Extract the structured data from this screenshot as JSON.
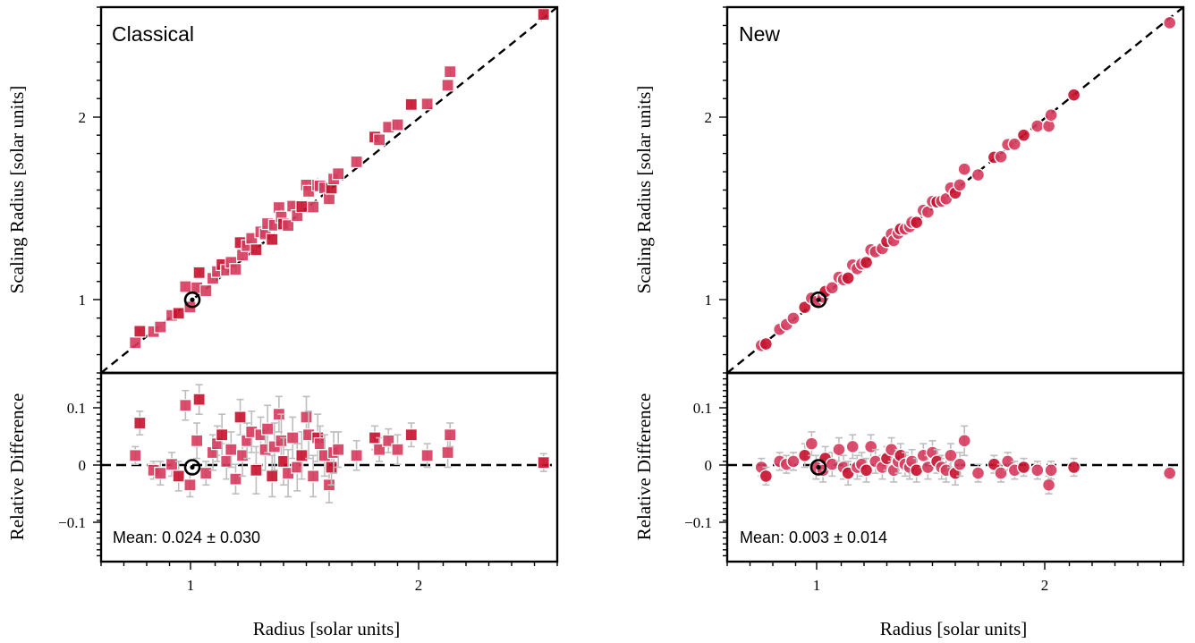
{
  "colors": {
    "marker": "#d63a5c",
    "marker_dark": "#c8102e",
    "errorbar": "#bdbdbd",
    "frame": "#000000",
    "sun_ring": "#000000"
  },
  "panels": [
    {
      "id": "classical",
      "title": "Classical",
      "marker": "square",
      "mean_text": "Mean: 0.024 ± 0.030",
      "xlabel": "Radius [solar units]",
      "ylabel_top": "Scaling Radius [solar units]",
      "ylabel_bottom": "Relative Difference",
      "xticklabels": [
        "1",
        "2"
      ],
      "yticklabels_top": [
        "1",
        "2"
      ],
      "yticklabels_bottom": [
        "0.1",
        "0",
        "−0.1"
      ]
    },
    {
      "id": "new",
      "title": "New",
      "marker": "circle",
      "mean_text": "Mean: 0.003 ± 0.014",
      "xlabel": "Radius [solar units]",
      "ylabel_top": "Scaling Radius [solar units]",
      "ylabel_bottom": "Relative Difference",
      "xticklabels": [
        "1",
        "2"
      ],
      "yticklabels_top": [
        "1",
        "2"
      ],
      "yticklabels_bottom": [
        "0.1",
        "0",
        "−0.1"
      ]
    }
  ],
  "chart_data": [
    {
      "type": "scatter",
      "title": "Classical",
      "xlabel": "Radius [solar units]",
      "ylabel_top": "Scaling Radius [solar units]",
      "ylabel_bottom": "Relative Difference",
      "xlim": [
        0.6,
        2.6
      ],
      "ylim_top": [
        0.6,
        2.6
      ],
      "ylim_bottom": [
        -0.16,
        0.16
      ],
      "xticks": [
        1,
        2
      ],
      "yticks_top": [
        1,
        2
      ],
      "yticks_bottom": [
        0.1,
        0,
        -0.1
      ],
      "reference_line_top": "y = x",
      "reference_line_bottom": "y = 0",
      "reference_point": {
        "x": 1.0,
        "y": 1.0,
        "rel": 0.0
      },
      "mean": 0.024,
      "std": 0.03,
      "x": [
        0.75,
        0.77,
        0.83,
        0.86,
        0.91,
        0.94,
        0.97,
        0.99,
        1.02,
        1.03,
        1.06,
        1.09,
        1.11,
        1.13,
        1.15,
        1.17,
        1.19,
        1.21,
        1.22,
        1.24,
        1.26,
        1.28,
        1.3,
        1.32,
        1.33,
        1.35,
        1.36,
        1.38,
        1.39,
        1.4,
        1.42,
        1.44,
        1.46,
        1.48,
        1.5,
        1.51,
        1.53,
        1.55,
        1.56,
        1.58,
        1.6,
        1.61,
        1.62,
        1.64,
        1.72,
        1.8,
        1.82,
        1.86,
        1.9,
        1.96,
        2.03,
        2.12,
        2.13,
        2.54
      ],
      "rel": [
        0.02,
        0.075,
        -0.005,
        -0.01,
        0.005,
        -0.015,
        0.105,
        -0.03,
        0.045,
        0.115,
        -0.01,
        0.025,
        0.04,
        0.055,
        0.01,
        0.03,
        -0.02,
        0.085,
        0.02,
        0.045,
        0.06,
        -0.005,
        0.055,
        0.03,
        0.065,
        -0.015,
        0.035,
        0.09,
        0.045,
        0.01,
        -0.01,
        0.05,
        0.0,
        0.02,
        0.085,
        0.055,
        -0.015,
        0.05,
        0.04,
        0.02,
        -0.03,
        0.0,
        0.025,
        0.03,
        0.02,
        0.05,
        0.03,
        0.045,
        0.03,
        0.055,
        0.02,
        0.025,
        0.055,
        0.008
      ],
      "err": [
        0.015,
        0.02,
        0.015,
        0.02,
        0.02,
        0.025,
        0.025,
        0.02,
        0.03,
        0.025,
        0.02,
        0.03,
        0.03,
        0.035,
        0.03,
        0.03,
        0.025,
        0.03,
        0.035,
        0.03,
        0.035,
        0.04,
        0.03,
        0.035,
        0.04,
        0.035,
        0.04,
        0.03,
        0.045,
        0.04,
        0.04,
        0.035,
        0.04,
        0.04,
        0.035,
        0.04,
        0.035,
        0.04,
        0.03,
        0.035,
        0.03,
        0.03,
        0.035,
        0.03,
        0.025,
        0.02,
        0.02,
        0.02,
        0.025,
        0.02,
        0.02,
        0.025,
        0.02,
        0.015
      ]
    },
    {
      "type": "scatter",
      "title": "New",
      "xlabel": "Radius [solar units]",
      "ylabel_top": "Scaling Radius [solar units]",
      "ylabel_bottom": "Relative Difference",
      "xlim": [
        0.6,
        2.6
      ],
      "ylim_top": [
        0.6,
        2.6
      ],
      "ylim_bottom": [
        -0.16,
        0.16
      ],
      "xticks": [
        1,
        2
      ],
      "yticks_top": [
        1,
        2
      ],
      "yticks_bottom": [
        0.1,
        0,
        -0.1
      ],
      "reference_line_top": "y = x",
      "reference_line_bottom": "y = 0",
      "reference_point": {
        "x": 1.0,
        "y": 1.0,
        "rel": 0.0
      },
      "mean": 0.003,
      "std": 0.014,
      "x": [
        0.75,
        0.77,
        0.83,
        0.86,
        0.89,
        0.94,
        0.97,
        0.99,
        1.02,
        1.03,
        1.06,
        1.09,
        1.11,
        1.13,
        1.15,
        1.17,
        1.19,
        1.21,
        1.23,
        1.25,
        1.28,
        1.3,
        1.32,
        1.33,
        1.35,
        1.36,
        1.38,
        1.4,
        1.41,
        1.43,
        1.46,
        1.48,
        1.5,
        1.52,
        1.54,
        1.56,
        1.58,
        1.6,
        1.62,
        1.64,
        1.7,
        1.77,
        1.8,
        1.83,
        1.86,
        1.9,
        1.96,
        2.01,
        2.02,
        2.12,
        2.54
      ],
      "rel": [
        0.0,
        -0.015,
        0.01,
        0.005,
        0.01,
        0.02,
        0.04,
        0.0,
        -0.005,
        0.015,
        0.005,
        0.03,
        0.0,
        -0.01,
        0.035,
        0.0,
        0.005,
        -0.005,
        0.035,
        0.01,
        0.0,
        0.015,
        0.03,
        -0.005,
        0.01,
        0.02,
        0.005,
        0.0,
        0.01,
        -0.005,
        0.02,
        0.0,
        0.025,
        0.01,
        0.0,
        -0.005,
        0.02,
        -0.01,
        0.005,
        0.045,
        -0.01,
        0.005,
        -0.01,
        0.01,
        -0.005,
        0.0,
        -0.005,
        -0.03,
        -0.005,
        0.0,
        -0.01
      ],
      "err": [
        0.015,
        0.015,
        0.015,
        0.015,
        0.015,
        0.02,
        0.02,
        0.02,
        0.02,
        0.02,
        0.02,
        0.02,
        0.02,
        0.02,
        0.02,
        0.02,
        0.02,
        0.02,
        0.02,
        0.02,
        0.02,
        0.02,
        0.02,
        0.02,
        0.02,
        0.02,
        0.02,
        0.02,
        0.02,
        0.02,
        0.02,
        0.02,
        0.02,
        0.02,
        0.02,
        0.02,
        0.02,
        0.02,
        0.02,
        0.025,
        0.015,
        0.015,
        0.015,
        0.015,
        0.015,
        0.015,
        0.015,
        0.015,
        0.015,
        0.015,
        0.01
      ]
    }
  ]
}
